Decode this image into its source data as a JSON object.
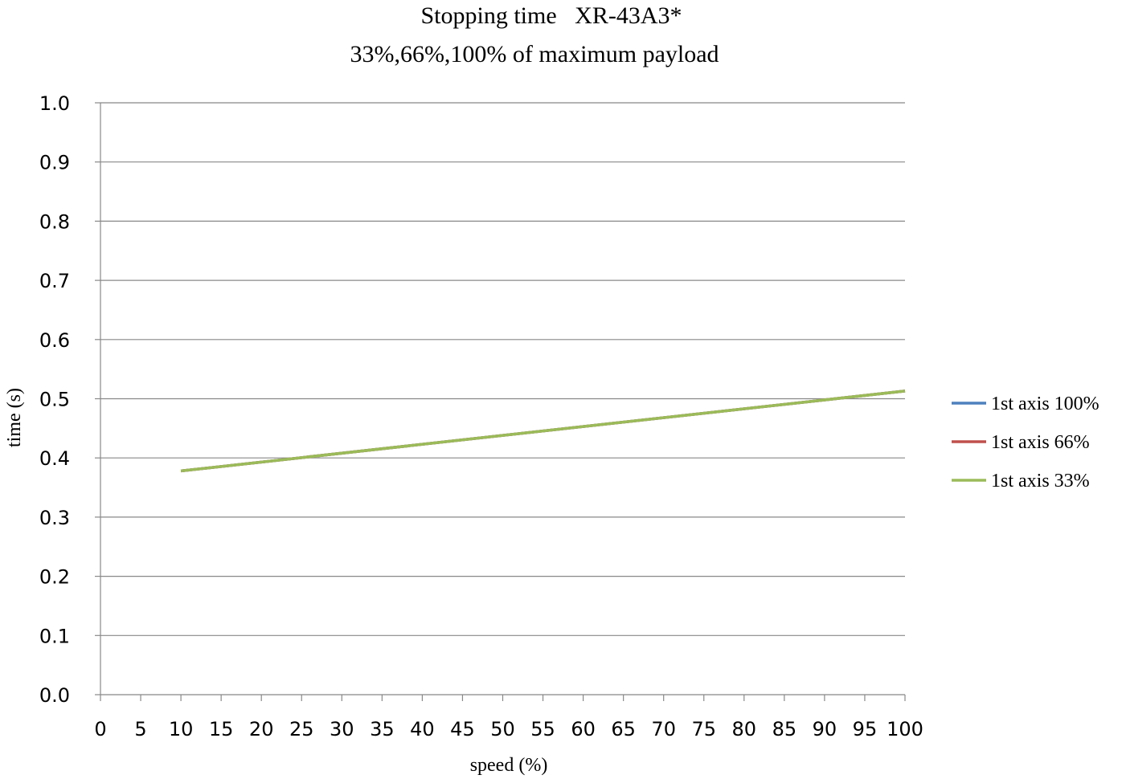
{
  "chart_data": {
    "type": "line",
    "title": "Stopping time   XR-43A3*",
    "subtitle": "33%,66%,100% of maximum payload",
    "xlabel": "speed (%)",
    "ylabel": "time (s)",
    "xlim": [
      0,
      100
    ],
    "ylim": [
      0,
      1.0
    ],
    "x_ticks": [
      "0",
      "5",
      "10",
      "15",
      "20",
      "25",
      "30",
      "35",
      "40",
      "45",
      "50",
      "55",
      "60",
      "65",
      "70",
      "75",
      "80",
      "85",
      "90",
      "95",
      "100"
    ],
    "y_ticks": [
      "0.0",
      "0.1",
      "0.2",
      "0.3",
      "0.4",
      "0.5",
      "0.6",
      "0.7",
      "0.8",
      "0.9",
      "1.0"
    ],
    "grid": true,
    "legend_position": "right",
    "series": [
      {
        "name": "1st axis 100%",
        "color": "#4f81bd",
        "x": [
          10,
          100
        ],
        "y": [
          0.378,
          0.513
        ]
      },
      {
        "name": "1st axis 66%",
        "color": "#c0504d",
        "x": [
          10,
          100
        ],
        "y": [
          0.378,
          0.513
        ]
      },
      {
        "name": "1st axis 33%",
        "color": "#9bbb59",
        "x": [
          10,
          100
        ],
        "y": [
          0.378,
          0.513
        ]
      }
    ]
  }
}
